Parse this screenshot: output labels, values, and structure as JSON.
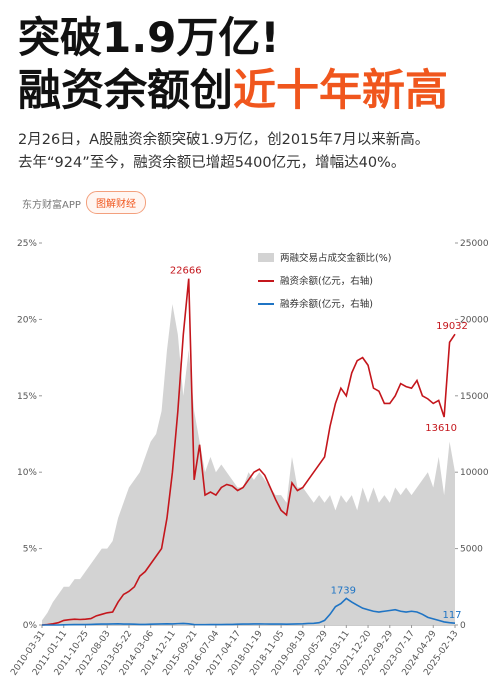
{
  "header": {
    "title_line1": "突破1.9万亿!",
    "title_line2_black": "融资余额创",
    "title_line2_orange": "近十年新高",
    "lines": [
      "2月26日，A股融资余额突破1.9万亿，创2015年7月以来新高。",
      "去年“924”至今，融资余额已增超5400亿元，增幅达40%。"
    ],
    "source": "东方财富APP",
    "tag": "图解财经"
  },
  "chart_data": {
    "type": "combo",
    "categories": [
      "2010-03-31",
      null,
      null,
      null,
      "2011-01-11",
      null,
      null,
      null,
      "2011-10-25",
      null,
      null,
      null,
      "2012-08-03",
      null,
      null,
      null,
      "2013-05-22",
      null,
      null,
      null,
      "2014-03-06",
      null,
      null,
      null,
      "2014-12-11",
      null,
      null,
      null,
      "2015-09-21",
      null,
      null,
      null,
      "2016-07-04",
      null,
      null,
      null,
      "2017-04-17",
      null,
      null,
      null,
      "2018-01-19",
      null,
      null,
      null,
      "2018-11-05",
      null,
      null,
      null,
      "2019-08-19",
      null,
      null,
      null,
      "2020-05-29",
      null,
      null,
      null,
      "2021-03-11",
      null,
      null,
      null,
      "2021-12-20",
      null,
      null,
      null,
      "2022-09-29",
      null,
      null,
      null,
      "2023-07-17",
      null,
      null,
      null,
      "2024-04-29",
      null,
      null,
      null,
      "2025-02-13"
    ],
    "series": [
      {
        "name": "两融交易占成交金额比(%)",
        "type": "area",
        "color": "#d3d3d3",
        "axis": "y",
        "values": [
          0.3,
          0.8,
          1.5,
          2,
          2.5,
          2.5,
          3,
          3,
          3.5,
          4,
          4.5,
          5,
          5,
          5.5,
          7,
          8,
          9,
          9.5,
          10,
          11,
          12,
          12.5,
          14,
          18,
          21,
          19,
          15,
          18,
          14,
          12,
          10,
          11,
          10,
          10.5,
          10,
          9.5,
          9,
          9,
          10,
          9.5,
          10,
          9.5,
          9,
          8.5,
          8.5,
          8,
          11,
          9,
          9,
          8.5,
          8,
          8.5,
          8,
          8.5,
          7.5,
          8.5,
          8,
          8.5,
          7.5,
          9,
          8,
          9,
          8,
          8.5,
          8,
          9,
          8.5,
          9,
          8.5,
          9,
          9.5,
          10,
          9,
          11,
          8.5,
          12,
          10
        ]
      },
      {
        "name": "融资余额(亿元，右轴)",
        "type": "line",
        "color": "#c4161c",
        "axis": "y2",
        "values": [
          0,
          30,
          80,
          150,
          300,
          350,
          380,
          360,
          380,
          420,
          600,
          700,
          800,
          850,
          1500,
          2000,
          2200,
          2500,
          3200,
          3500,
          4000,
          4500,
          5000,
          7000,
          10000,
          14000,
          19000,
          22666,
          9500,
          11800,
          8500,
          8700,
          8500,
          9000,
          9200,
          9100,
          8800,
          9000,
          9500,
          10000,
          10200,
          9800,
          9000,
          8200,
          7500,
          7200,
          9300,
          8800,
          9000,
          9500,
          10000,
          10500,
          11000,
          13000,
          14500,
          15500,
          15000,
          16500,
          17300,
          17500,
          17000,
          15500,
          15300,
          14500,
          14500,
          15000,
          15800,
          15600,
          15500,
          16000,
          15000,
          14800,
          14500,
          14700,
          13610,
          18500,
          19032
        ],
        "value_labels": [
          null,
          null,
          null,
          null,
          null,
          null,
          null,
          null,
          null,
          null,
          null,
          null,
          null,
          null,
          null,
          null,
          null,
          null,
          null,
          null,
          null,
          null,
          null,
          null,
          null,
          null,
          null,
          "22666",
          null,
          null,
          null,
          null,
          null,
          null,
          null,
          null,
          null,
          null,
          null,
          null,
          null,
          null,
          null,
          null,
          null,
          null,
          null,
          null,
          null,
          null,
          null,
          null,
          null,
          null,
          null,
          null,
          null,
          null,
          null,
          null,
          null,
          null,
          null,
          null,
          null,
          null,
          null,
          null,
          null,
          null,
          null,
          null,
          null,
          null,
          "13610",
          null,
          "19032"
        ]
      },
      {
        "name": "融券余额(亿元，右轴)",
        "type": "line",
        "color": "#1f74c4",
        "axis": "y2",
        "values": [
          0,
          0,
          0,
          0,
          10,
          20,
          30,
          30,
          30,
          40,
          50,
          60,
          60,
          70,
          80,
          60,
          60,
          50,
          40,
          40,
          50,
          60,
          70,
          80,
          70,
          90,
          100,
          80,
          30,
          25,
          25,
          30,
          30,
          30,
          35,
          40,
          50,
          60,
          60,
          70,
          70,
          65,
          60,
          60,
          60,
          55,
          60,
          70,
          80,
          100,
          110,
          150,
          300,
          700,
          1200,
          1400,
          1739,
          1500,
          1300,
          1100,
          1000,
          900,
          850,
          900,
          950,
          1000,
          900,
          850,
          900,
          850,
          700,
          500,
          400,
          300,
          200,
          150,
          117
        ],
        "value_labels": [
          null,
          null,
          null,
          null,
          null,
          null,
          null,
          null,
          null,
          null,
          null,
          null,
          null,
          null,
          null,
          null,
          null,
          null,
          null,
          null,
          null,
          null,
          null,
          null,
          null,
          null,
          null,
          null,
          null,
          null,
          null,
          null,
          null,
          null,
          null,
          null,
          null,
          null,
          null,
          null,
          null,
          null,
          null,
          null,
          null,
          null,
          null,
          null,
          null,
          null,
          null,
          null,
          null,
          null,
          null,
          null,
          "1739",
          null,
          null,
          null,
          null,
          null,
          null,
          null,
          null,
          null,
          null,
          null,
          null,
          null,
          null,
          null,
          null,
          null,
          null,
          null,
          "117"
        ]
      }
    ],
    "ylim": [
      0,
      25
    ],
    "yticks": [
      {
        "value": 0,
        "label": "0%"
      },
      {
        "value": 5,
        "label": "5%"
      },
      {
        "value": 10,
        "label": "10%"
      },
      {
        "value": 15,
        "label": "15%"
      },
      {
        "value": 20,
        "label": "20%"
      },
      {
        "value": 25,
        "label": "25%"
      }
    ],
    "y2lim": [
      0,
      25000
    ],
    "y2ticks": [
      0,
      5000,
      10000,
      15000,
      20000,
      25000
    ],
    "legend": "top-right"
  }
}
